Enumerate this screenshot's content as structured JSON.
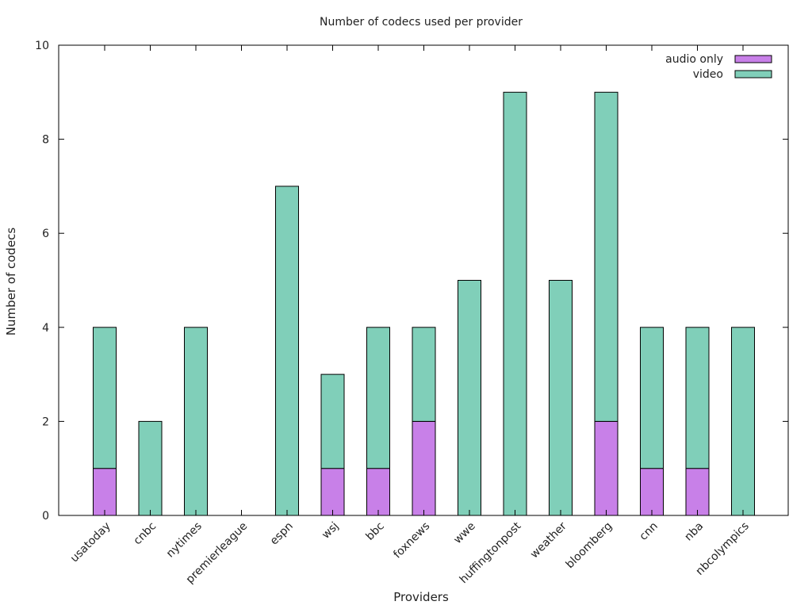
{
  "colors": {
    "audio_only": "#c880e8",
    "video": "#80cfb9",
    "bar_stroke": "#000000"
  },
  "chart_data": {
    "type": "bar",
    "stacked": true,
    "title": "Number of codecs used per provider",
    "xlabel": "Providers",
    "ylabel": "Number of codecs",
    "ylim": [
      0,
      10
    ],
    "yticks": [
      0,
      2,
      4,
      6,
      8,
      10
    ],
    "grid": false,
    "legend_position": "top-right",
    "categories": [
      "usatoday",
      "cnbc",
      "nytimes",
      "premierleague",
      "espn",
      "wsj",
      "bbc",
      "foxnews",
      "wwe",
      "huffingtonpost",
      "weather",
      "bloomberg",
      "cnn",
      "nba",
      "nbcolympics"
    ],
    "series": [
      {
        "name": "audio only",
        "values": [
          1,
          0,
          0,
          0,
          0,
          1,
          1,
          2,
          0,
          0,
          0,
          2,
          1,
          1,
          0
        ]
      },
      {
        "name": "video",
        "values": [
          3,
          2,
          4,
          0,
          7,
          2,
          3,
          2,
          5,
          9,
          5,
          7,
          3,
          3,
          4
        ]
      }
    ]
  }
}
